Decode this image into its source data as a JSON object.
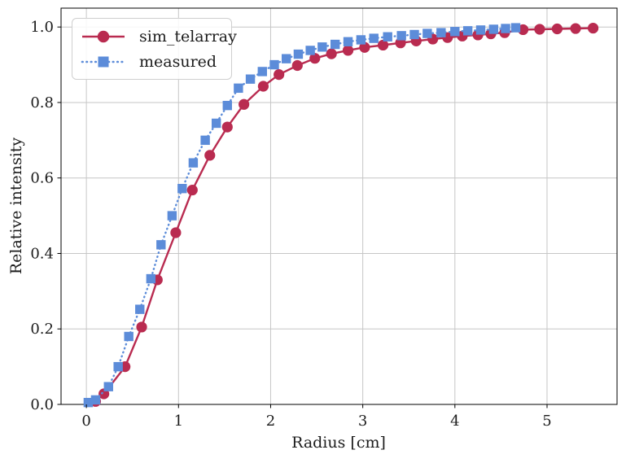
{
  "chart_data": {
    "type": "line",
    "title": "",
    "xlabel": "Radius [cm]",
    "ylabel": "Relative intensity",
    "xlim": [
      -0.275,
      5.76
    ],
    "ylim": [
      0,
      1.05
    ],
    "grid": true,
    "legend_position": "upper left",
    "x_ticks": [
      0,
      1,
      2,
      3,
      4,
      5
    ],
    "x_tick_labels": [
      "0",
      "1",
      "2",
      "3",
      "4",
      "5"
    ],
    "y_ticks": [
      0,
      0.2,
      0.4,
      0.6,
      0.8,
      1.0
    ],
    "y_tick_labels": [
      "0.0",
      "0.2",
      "0.4",
      "0.6",
      "0.8",
      "1.0"
    ],
    "colors": {
      "sim_telarray": "#b92b50",
      "measured": "#5c8cd9",
      "grid": "#c6c6c6",
      "spine": "#000000",
      "text": "#1c1c1c"
    },
    "series": [
      {
        "name": "sim_telarray",
        "marker": "circle",
        "linestyle": "solid",
        "color": "#b92b50",
        "x": [
          0.1,
          0.19,
          0.42,
          0.6,
          0.77,
          0.97,
          1.15,
          1.34,
          1.53,
          1.71,
          1.92,
          2.09,
          2.29,
          2.48,
          2.66,
          2.84,
          3.02,
          3.22,
          3.41,
          3.58,
          3.76,
          3.92,
          4.08,
          4.25,
          4.39,
          4.54,
          4.74,
          4.92,
          5.11,
          5.31,
          5.5
        ],
        "y": [
          0.008,
          0.028,
          0.1,
          0.205,
          0.33,
          0.455,
          0.568,
          0.66,
          0.735,
          0.795,
          0.843,
          0.874,
          0.898,
          0.917,
          0.929,
          0.938,
          0.946,
          0.952,
          0.958,
          0.963,
          0.968,
          0.972,
          0.976,
          0.979,
          0.982,
          0.985,
          0.993,
          0.994,
          0.995,
          0.996,
          0.997
        ]
      },
      {
        "name": "measured",
        "marker": "square",
        "linestyle": "dotted",
        "color": "#5c8cd9",
        "x": [
          0.02,
          0.1,
          0.24,
          0.345,
          0.46,
          0.58,
          0.7,
          0.81,
          0.93,
          1.04,
          1.16,
          1.29,
          1.41,
          1.53,
          1.65,
          1.78,
          1.91,
          2.04,
          2.17,
          2.3,
          2.43,
          2.56,
          2.7,
          2.84,
          2.98,
          3.12,
          3.27,
          3.42,
          3.56,
          3.7,
          3.85,
          4.0,
          4.14,
          4.28,
          4.42,
          4.55,
          4.66
        ],
        "y": [
          0.005,
          0.012,
          0.047,
          0.1,
          0.18,
          0.252,
          0.333,
          0.423,
          0.5,
          0.572,
          0.64,
          0.7,
          0.745,
          0.792,
          0.838,
          0.862,
          0.882,
          0.9,
          0.916,
          0.928,
          0.938,
          0.947,
          0.954,
          0.961,
          0.966,
          0.97,
          0.974,
          0.977,
          0.98,
          0.983,
          0.985,
          0.988,
          0.99,
          0.992,
          0.994,
          0.996,
          0.998
        ]
      }
    ]
  }
}
